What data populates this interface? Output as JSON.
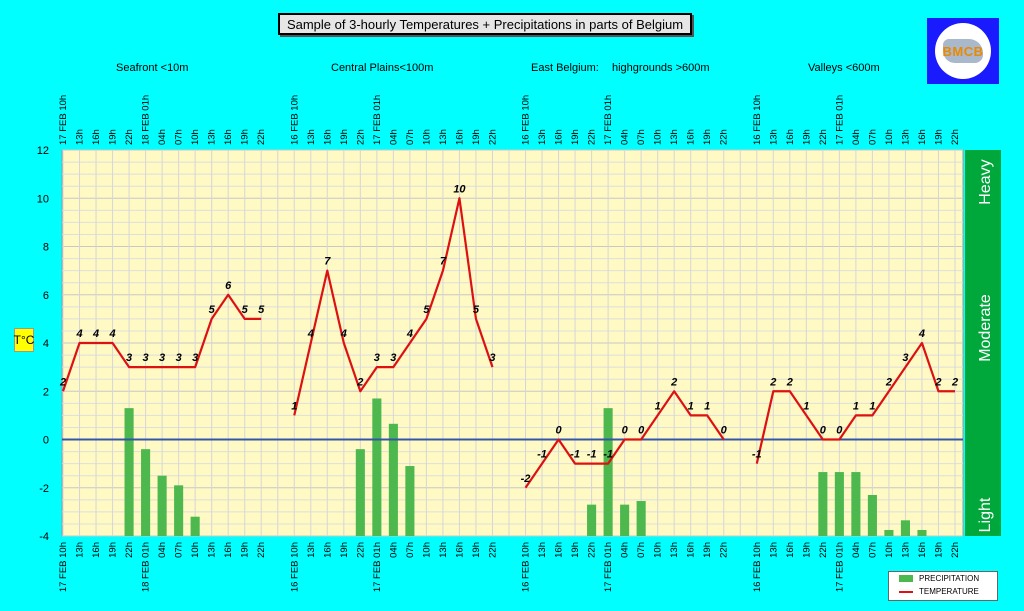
{
  "title": "Sample of 3-hourly Temperatures + Precipitations in parts of Belgium",
  "logo": {
    "text": "BMCB"
  },
  "regions": [
    "Seafront <10m",
    "Central Plains<100m",
    "East Belgium:",
    "highgrounds >600m",
    "Valleys <600m"
  ],
  "y_axis": {
    "label": "T°C",
    "ticks": [
      "12",
      "10",
      "8",
      "6",
      "4",
      "2",
      "0",
      "-2",
      "-4"
    ]
  },
  "intensity_labels": [
    "Heavy",
    "Moderate",
    "Light"
  ],
  "legend": {
    "precipitation": "PRECIPITATION",
    "temperature": "TEMPERATURE"
  },
  "colors": {
    "background": "#00ffff",
    "plot": "#fff9c4",
    "temperature": "#dd1111",
    "precipitation": "#4db84d",
    "intensity_bar": "#00a83c",
    "zero_line": "#3355aa"
  },
  "chart_data": {
    "type": "line",
    "ylabel": "T°C",
    "ylim": [
      -4,
      12
    ],
    "grid": true,
    "legend_placement": "bottom-right",
    "x_tick_labels": [
      "17 FEB 10h",
      "13h",
      "16h",
      "19h",
      "22h",
      "18 FEB 01h",
      "04h",
      "07h",
      "10h",
      "13h",
      "16h",
      "19h",
      "22h",
      "",
      "16 FEB 10h",
      "13h",
      "16h",
      "19h",
      "22h",
      "17 FEB 01h",
      "04h",
      "07h",
      "10h",
      "13h",
      "16h",
      "19h",
      "22h",
      "",
      "16 FEB 10h",
      "13h",
      "16h",
      "19h",
      "22h",
      "17 FEB 01h",
      "04h",
      "07h",
      "10h",
      "13h",
      "16h",
      "19h",
      "22h",
      "",
      "16 FEB 10h",
      "13h",
      "16h",
      "19h",
      "22h",
      "17 FEB 01h",
      "04h",
      "07h",
      "10h",
      "13h",
      "16h",
      "19h",
      "22h"
    ],
    "series": [
      {
        "name": "TEMPERATURE",
        "segments": [
          [
            2,
            4,
            4,
            4,
            3,
            3,
            3,
            3,
            3,
            5,
            6,
            5,
            5
          ],
          [
            1,
            4,
            7,
            4,
            2,
            3,
            3,
            4,
            5,
            7,
            10,
            5,
            3
          ],
          [
            -2,
            -1,
            0,
            -1,
            -1,
            -1,
            0,
            0,
            1,
            2,
            1,
            1,
            0
          ],
          [
            -1,
            2,
            2,
            1,
            0,
            0,
            1,
            1,
            2,
            3,
            4,
            2,
            2
          ]
        ]
      },
      {
        "name": "PRECIPITATION",
        "segments": [
          [
            0,
            0,
            0,
            0,
            1.3,
            -0.4,
            -1.5,
            -1.9,
            -3.2,
            0,
            0,
            0,
            0
          ],
          [
            0,
            0,
            0,
            0,
            -0.4,
            1.7,
            0.65,
            -1.1,
            0,
            0,
            0,
            0,
            0
          ],
          [
            0,
            0,
            0,
            0,
            -2.7,
            1.3,
            -2.7,
            -2.55,
            0,
            0,
            0,
            0,
            0
          ],
          [
            0,
            0,
            0,
            0,
            -1.35,
            -1.35,
            -1.35,
            -2.3,
            -3.75,
            -3.35,
            -3.75,
            0,
            0
          ]
        ]
      }
    ]
  }
}
